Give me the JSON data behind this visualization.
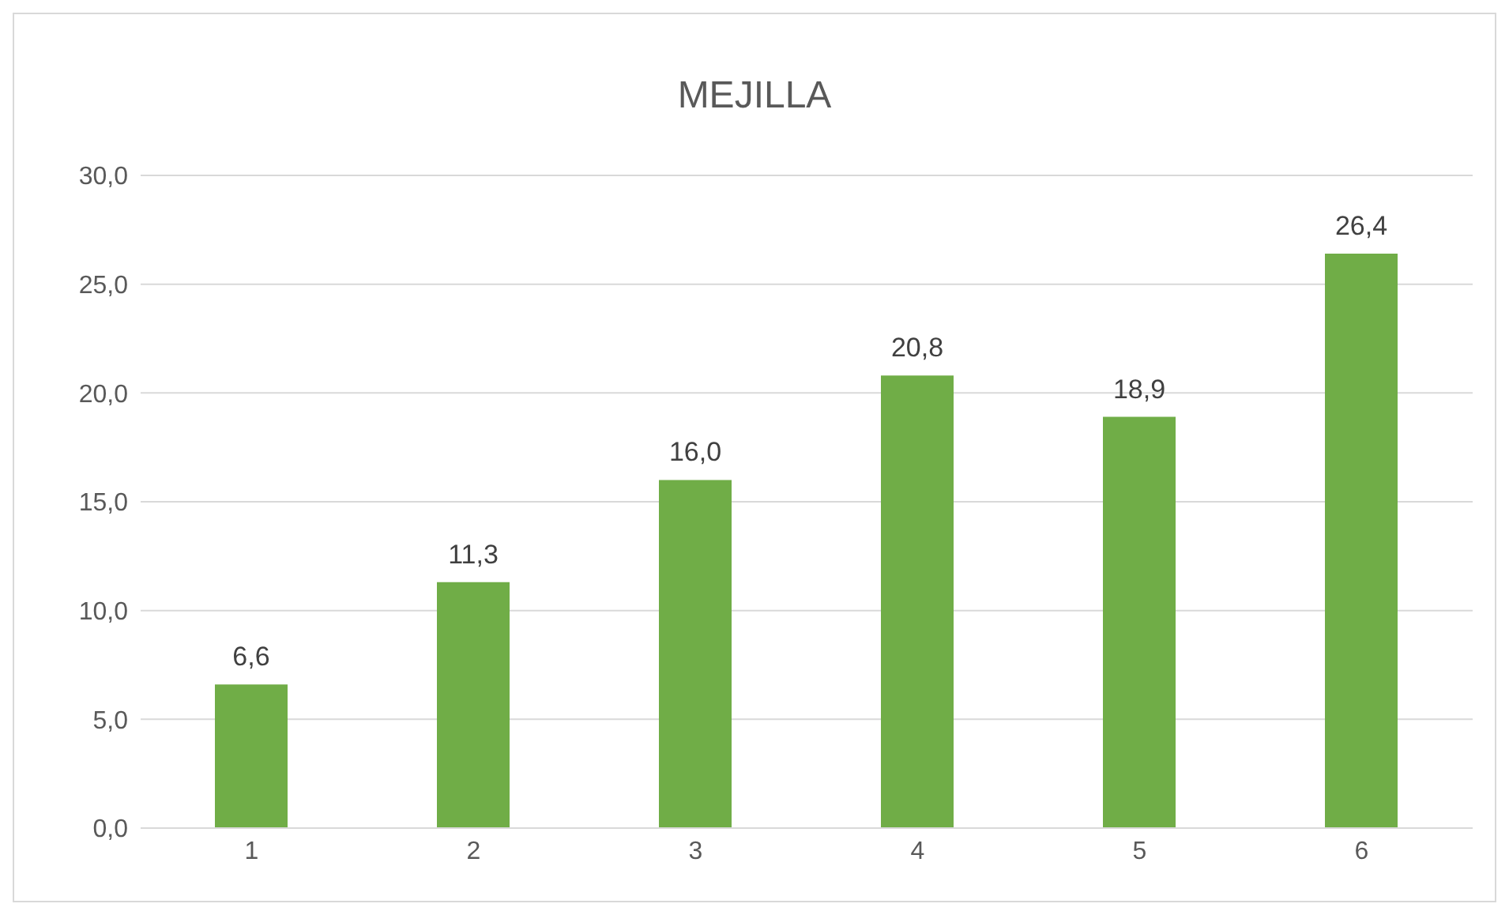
{
  "chart_data": {
    "type": "bar",
    "title": "MEJILLA",
    "categories": [
      "1",
      "2",
      "3",
      "4",
      "5",
      "6"
    ],
    "values": [
      6.6,
      11.3,
      16.0,
      20.8,
      18.9,
      26.4
    ],
    "value_labels": [
      "6,6",
      "11,3",
      "16,0",
      "20,8",
      "18,9",
      "26,4"
    ],
    "color": "#70ad47",
    "ylim": [
      0,
      30
    ],
    "yticks": [
      {
        "value": 0,
        "label": "0,0"
      },
      {
        "value": 5,
        "label": "5,0"
      },
      {
        "value": 10,
        "label": "10,0"
      },
      {
        "value": 15,
        "label": "15,0"
      },
      {
        "value": 20,
        "label": "20,0"
      },
      {
        "value": 25,
        "label": "25,0"
      },
      {
        "value": 30,
        "label": "30,0"
      }
    ],
    "grid": "y",
    "legend": false
  }
}
